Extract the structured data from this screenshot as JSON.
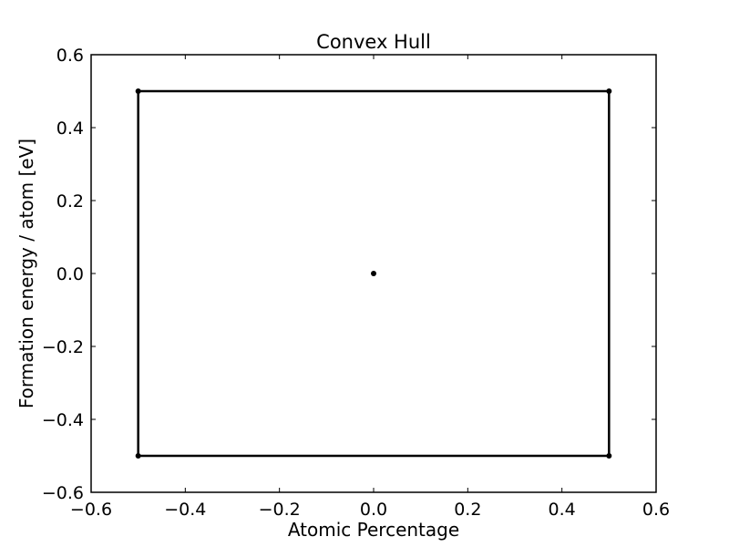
{
  "chart_data": {
    "type": "line",
    "title": "Convex Hull",
    "xlabel": "Atomic Percentage",
    "ylabel": "Formation energy / atom [eV]",
    "xlim": [
      -0.6,
      0.6
    ],
    "ylim": [
      -0.6,
      0.6
    ],
    "xticks": [
      -0.6,
      -0.4,
      -0.2,
      0.0,
      0.2,
      0.4,
      0.6
    ],
    "yticks": [
      -0.6,
      -0.4,
      -0.2,
      0.0,
      0.2,
      0.4,
      0.6
    ],
    "xtick_labels": [
      "−0.6",
      "−0.4",
      "−0.2",
      "0.0",
      "0.2",
      "0.4",
      "0.6"
    ],
    "ytick_labels": [
      "−0.6",
      "−0.4",
      "−0.2",
      "0.0",
      "0.2",
      "0.4",
      "0.6"
    ],
    "grid": false,
    "series": [
      {
        "x": [
          -0.5,
          0.5,
          0.5,
          -0.5,
          -0.5
        ],
        "y": [
          0.5,
          0.5,
          -0.5,
          -0.5,
          0.5
        ],
        "color": "#000000"
      }
    ],
    "points": [
      {
        "x": -0.5,
        "y": 0.5
      },
      {
        "x": 0.5,
        "y": 0.5
      },
      {
        "x": 0.5,
        "y": -0.5
      },
      {
        "x": -0.5,
        "y": -0.5
      },
      {
        "x": 0.0,
        "y": 0.0
      }
    ]
  }
}
